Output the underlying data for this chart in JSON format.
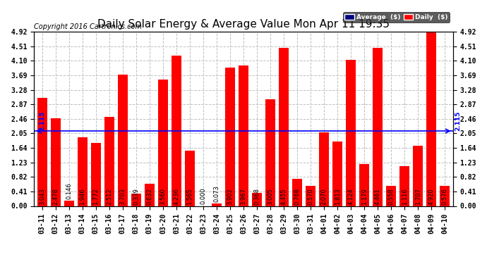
{
  "title": "Daily Solar Energy & Average Value Mon Apr 11 19:35",
  "copyright": "Copyright 2016 Cartronics.com",
  "categories": [
    "03-11",
    "03-12",
    "03-13",
    "03-14",
    "03-15",
    "03-16",
    "03-17",
    "03-18",
    "03-19",
    "03-20",
    "03-21",
    "03-22",
    "03-23",
    "03-24",
    "03-25",
    "03-26",
    "03-27",
    "03-28",
    "03-29",
    "03-30",
    "03-31",
    "04-01",
    "04-02",
    "04-03",
    "04-04",
    "04-05",
    "04-06",
    "04-07",
    "04-08",
    "04-09",
    "04-10"
  ],
  "values": [
    3.043,
    2.478,
    0.146,
    1.946,
    1.772,
    2.512,
    3.703,
    0.339,
    0.632,
    3.56,
    4.236,
    1.565,
    0.0,
    0.073,
    3.902,
    3.967,
    0.368,
    3.005,
    4.455,
    0.768,
    0.57,
    2.07,
    1.813,
    4.124,
    1.179,
    4.461,
    0.558,
    1.116,
    1.707,
    4.92,
    0.576
  ],
  "average": 2.115,
  "bar_color": "#FF0000",
  "average_line_color": "#0000FF",
  "background_color": "#FFFFFF",
  "plot_bg_color": "#FFFFFF",
  "grid_color": "#C0C0C0",
  "yticks": [
    0.0,
    0.41,
    0.82,
    1.23,
    1.64,
    2.05,
    2.46,
    2.87,
    3.28,
    3.69,
    4.1,
    4.51,
    4.92
  ],
  "ylim": [
    0.0,
    4.92
  ],
  "legend_avg_bg": "#000080",
  "legend_daily_bg": "#FF0000",
  "legend_text_color": "#FFFFFF",
  "title_fontsize": 11,
  "tick_fontsize": 7,
  "bar_label_fontsize": 6,
  "copyright_fontsize": 7,
  "avg_label": "2.115",
  "bar_width": 0.75
}
